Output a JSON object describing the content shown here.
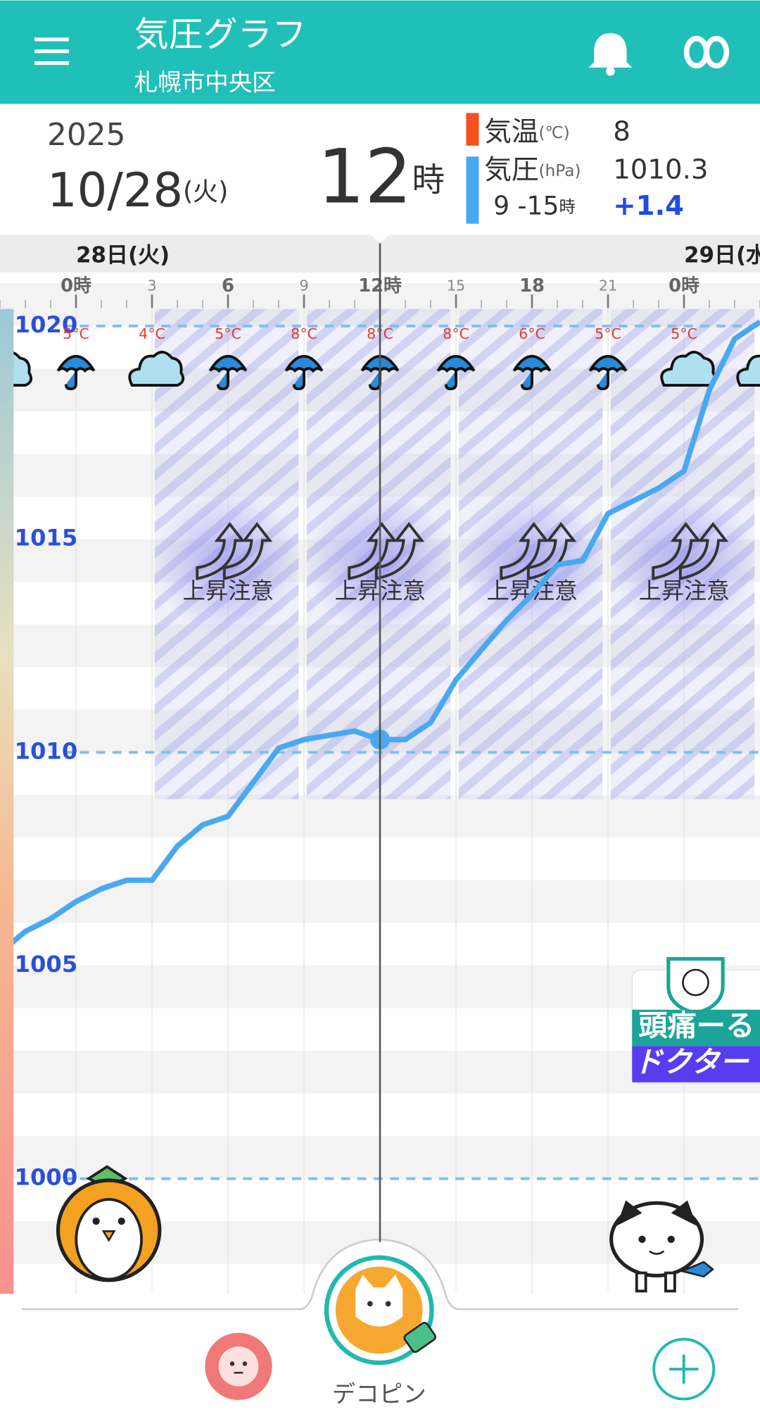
{
  "header": {
    "title": "気圧グラフ",
    "subtitle": "札幌市中央区"
  },
  "info": {
    "year": 2025,
    "date": "10/28",
    "weekday": "(火)",
    "hour": 12,
    "hour_unit": "時",
    "temp_label": "気温",
    "temp_unit": "(℃)",
    "temp_value": 8,
    "temp_color": "#f4511e",
    "pressure_label": "気圧",
    "pressure_unit": "(hPa)",
    "pressure_value": 1010.3,
    "pressure_color": "#4aa8f0",
    "range": "9 -15",
    "range_unit": "時",
    "pressure_change": "+1.4"
  },
  "chart_data": {
    "type": "line",
    "days": [
      {
        "hour": 0,
        "label": "28日(火)"
      },
      {
        "hour": 24,
        "label": "29日(水"
      }
    ],
    "xlim": [
      -3,
      27
    ],
    "xticks": [
      {
        "value": 0,
        "label": "0時"
      },
      3,
      6,
      9,
      {
        "value": 12,
        "label": "12時"
      },
      15,
      18,
      21,
      {
        "value": 24,
        "label": "0時"
      }
    ],
    "ylim": [
      997.3,
      1020.4
    ],
    "yticks": [
      1000,
      1005,
      1010,
      1015,
      1020
    ],
    "grid": true,
    "current_hour": 12,
    "temperature": {
      "x": [
        0,
        3,
        6,
        9,
        12,
        15,
        18,
        21,
        24
      ],
      "values": [
        5,
        4,
        5,
        8,
        8,
        8,
        6,
        5,
        5
      ],
      "value_labels": [
        "5°C",
        "4°C",
        "5°C",
        "8°C",
        "8°C",
        "8°C",
        "6°C",
        "5°C",
        "5°C"
      ],
      "color": "#e53935"
    },
    "weather_icons": {
      "x": [
        -3,
        0,
        3,
        6,
        9,
        12,
        15,
        18,
        21,
        24,
        27
      ],
      "kinds": [
        "cloud",
        "rain",
        "cloud",
        "rain",
        "rain",
        "rain",
        "rain",
        "rain",
        "rain",
        "cloud",
        "cloud"
      ]
    },
    "warnings": [
      {
        "from": 3,
        "to": 9,
        "label": "上昇注意"
      },
      {
        "from": 9,
        "to": 15,
        "label": "上昇注意"
      },
      {
        "from": 15,
        "to": 21,
        "label": "上昇注意"
      },
      {
        "from": 21,
        "to": 27,
        "label": "上昇注意"
      }
    ],
    "series": [
      {
        "name": "気圧",
        "color": "#4aa8f0",
        "x": [
          -3,
          -2,
          -1,
          0,
          1,
          2,
          3,
          4,
          5,
          6,
          7,
          8,
          9,
          10,
          11,
          12,
          13,
          14,
          15,
          16,
          17,
          18,
          19,
          20,
          21,
          22,
          23,
          24,
          25,
          26,
          27
        ],
        "values": [
          1005.3,
          1005.8,
          1006.1,
          1006.5,
          1006.8,
          1007.0,
          1007.0,
          1007.8,
          1008.3,
          1008.5,
          1009.3,
          1010.1,
          1010.3,
          1010.4,
          1010.5,
          1010.3,
          1010.3,
          1010.7,
          1011.7,
          1012.4,
          1013.1,
          1013.7,
          1014.4,
          1014.5,
          1015.6,
          1015.9,
          1016.2,
          1016.6,
          1018.5,
          1019.7,
          1020.1
        ]
      }
    ]
  },
  "doctor": {
    "line1": "頭痛ーる",
    "line2": "ドクター"
  },
  "nav": {
    "center_label": "デコピン"
  }
}
